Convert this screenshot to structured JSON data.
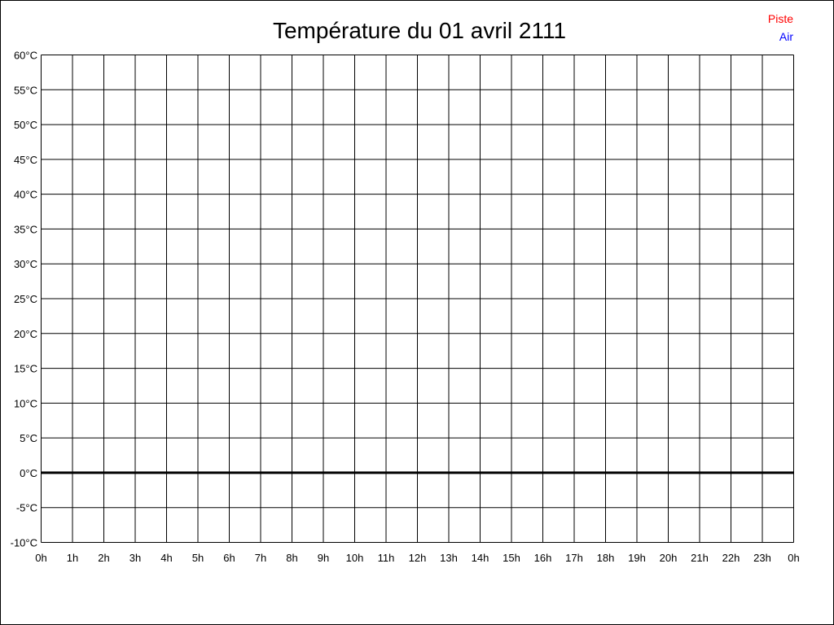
{
  "chart_data": {
    "type": "line",
    "title": "Température du 01 avril 2111",
    "xlabel": "",
    "ylabel": "",
    "x_ticks": [
      "0h",
      "1h",
      "2h",
      "3h",
      "4h",
      "5h",
      "6h",
      "7h",
      "8h",
      "9h",
      "10h",
      "11h",
      "12h",
      "13h",
      "14h",
      "15h",
      "16h",
      "17h",
      "18h",
      "19h",
      "20h",
      "21h",
      "22h",
      "23h",
      "0h"
    ],
    "y_ticks": [
      "60°C",
      "55°C",
      "50°C",
      "45°C",
      "40°C",
      "35°C",
      "30°C",
      "25°C",
      "20°C",
      "15°C",
      "10°C",
      "5°C",
      "0°C",
      "-5°C",
      "-10°C"
    ],
    "xlim": [
      0,
      24
    ],
    "ylim": [
      -10,
      60
    ],
    "grid": true,
    "legend_position": "top-right",
    "series": [
      {
        "name": "Piste",
        "color": "#ff0000",
        "values": []
      },
      {
        "name": "Air",
        "color": "#0000ff",
        "values": []
      }
    ],
    "zero_line_color": "#000000"
  }
}
